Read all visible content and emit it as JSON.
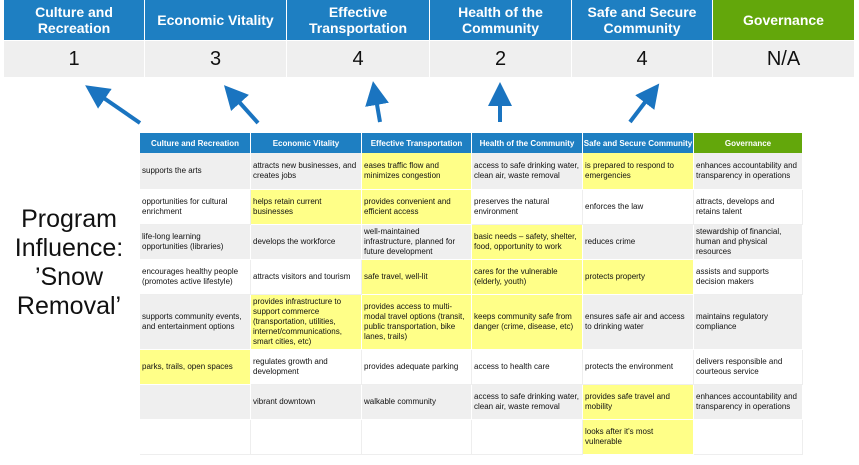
{
  "summary": {
    "headers": [
      "Culture and Recreation",
      "Economic Vitality",
      "Effective Transportation",
      "Health of the Community",
      "Safe and Secure Community",
      "Governance"
    ],
    "values": [
      "1",
      "3",
      "4",
      "2",
      "4",
      "N/A"
    ]
  },
  "side_label": "Program Influence: ’Snow Removal’",
  "colors": {
    "header_blue": "#1e7fc2",
    "governance_green": "#63a70b",
    "highlight_yellow": "#ffff88",
    "arrow_blue": "#1a74c0"
  },
  "table": {
    "headers": [
      "Culture and Recreation",
      "Economic Vitality",
      "Effective Transportation",
      "Health of the Community",
      "Safe and Secure Community",
      "Governance"
    ],
    "rows": [
      [
        "supports the arts",
        "attracts new businesses, and creates jobs",
        "eases traffic flow and minimizes congestion",
        "access to safe drinking water, clean air, waste removal",
        "is prepared to respond to emergencies",
        "enhances accountability and transparency in operations"
      ],
      [
        "opportunities for cultural enrichment",
        "helps retain current businesses",
        "provides convenient and efficient access",
        "preserves the natural environment",
        "enforces the law",
        "attracts, develops and retains talent"
      ],
      [
        "life-long learning opportunities (libraries)",
        "develops the workforce",
        "well-maintained infrastructure, planned for future development",
        "basic needs – safety, shelter, food, opportunity to work",
        "reduces crime",
        "stewardship of financial, human and physical resources"
      ],
      [
        "encourages healthy people (promotes active lifestyle)",
        "attracts visitors and tourism",
        "safe travel, well-lit",
        "cares for the vulnerable (elderly, youth)",
        "protects property",
        "assists and supports decision makers"
      ],
      [
        "supports community events, and entertainment options",
        "provides infrastructure to support commerce (transportation, utilities, internet/communications, smart cities, etc)",
        "provides access to multi-modal travel options (transit, public transportation, bike lanes, trails)",
        "keeps community safe from danger (crime, disease, etc)",
        "ensures safe air and access to drinking water",
        "maintains regulatory compliance"
      ],
      [
        "parks, trails, open spaces",
        "regulates growth and development",
        "provides adequate parking",
        "access to health care",
        "protects the environment",
        "delivers responsible and courteous service"
      ],
      [
        "",
        "vibrant downtown",
        "walkable community",
        "access to safe drinking water, clean air, waste removal",
        "provides safe travel and mobility",
        "enhances accountability and transparency in operations"
      ],
      [
        "",
        "",
        "",
        "",
        "looks after it's most vulnerable",
        ""
      ]
    ],
    "highlighted": [
      [
        2,
        4
      ],
      [
        1,
        2
      ],
      [
        3
      ],
      [
        2,
        3,
        4
      ],
      [
        1,
        2,
        3
      ],
      [
        0
      ],
      [
        4
      ],
      [
        4
      ]
    ]
  }
}
